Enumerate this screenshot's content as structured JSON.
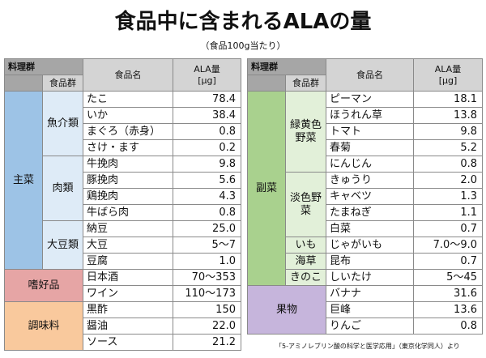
{
  "title": "食品中に含まれるALAの量",
  "subtitle": "（食品100g当たり）",
  "left_table": {
    "header": {
      "category": "料理群",
      "group": "食品群",
      "food": "食品名",
      "amount": "ALA量",
      "unit": "[μg]"
    },
    "sections": [
      {
        "name": "主菜",
        "groups": [
          {
            "name": "魚介類",
            "items": [
              {
                "name": "たこ",
                "value": "78.4"
              },
              {
                "name": "いか",
                "value": "38.4"
              },
              {
                "name": "まぐろ（赤身）",
                "value": "0.8"
              },
              {
                "name": "さけ・ます",
                "value": "0.2"
              }
            ]
          },
          {
            "name": "肉類",
            "items": [
              {
                "name": "牛挽肉",
                "value": "9.8"
              },
              {
                "name": "豚挽肉",
                "value": "5.6"
              },
              {
                "name": "鶏挽肉",
                "value": "4.3"
              },
              {
                "name": "牛ばら肉",
                "value": "0.8"
              }
            ]
          },
          {
            "name": "大豆類",
            "items": [
              {
                "name": "納豆",
                "value": "25.0"
              },
              {
                "name": "大豆",
                "value": "5〜7"
              },
              {
                "name": "豆腐",
                "value": "1.0"
              }
            ]
          }
        ]
      },
      {
        "name": "嗜好品",
        "items": [
          {
            "name": "日本酒",
            "value": "70〜353"
          },
          {
            "name": "ワイン",
            "value": "110〜173"
          }
        ]
      },
      {
        "name": "調味料",
        "items": [
          {
            "name": "黒酢",
            "value": "150"
          },
          {
            "name": "醤油",
            "value": "22.0"
          },
          {
            "name": "ソース",
            "value": "21.2"
          }
        ]
      }
    ]
  },
  "right_table": {
    "header": {
      "category": "料理群",
      "group": "食品群",
      "food": "食品名",
      "amount": "ALA量",
      "unit": "[μg]"
    },
    "sections": [
      {
        "name": "副菜",
        "groups": [
          {
            "name": "緑黄色野菜",
            "items": [
              {
                "name": "ピーマン",
                "value": "18.1"
              },
              {
                "name": "ほうれん草",
                "value": "13.8"
              },
              {
                "name": "トマト",
                "value": "9.8"
              },
              {
                "name": "春菊",
                "value": "5.2"
              },
              {
                "name": "にんじん",
                "value": "0.8"
              }
            ]
          },
          {
            "name": "淡色野菜",
            "items": [
              {
                "name": "きゅうり",
                "value": "2.0"
              },
              {
                "name": "キャベツ",
                "value": "1.3"
              },
              {
                "name": "たまねぎ",
                "value": "1.1"
              },
              {
                "name": "白菜",
                "value": "0.7"
              }
            ]
          },
          {
            "name": "いも",
            "items": [
              {
                "name": "じゃがいも",
                "value": "7.0〜9.0"
              }
            ]
          },
          {
            "name": "海草",
            "items": [
              {
                "name": "昆布",
                "value": "0.7"
              }
            ]
          },
          {
            "name": "きのこ",
            "items": [
              {
                "name": "しいたけ",
                "value": "5〜45"
              }
            ]
          }
        ]
      },
      {
        "name": "果物",
        "items": [
          {
            "name": "バナナ",
            "value": "31.6"
          },
          {
            "name": "巨峰",
            "value": "13.6"
          },
          {
            "name": "りんご",
            "value": "0.8"
          }
        ]
      }
    ]
  },
  "source": "「5-アミノレブリン酸の科学と医学応用」（東京化学同人）より"
}
